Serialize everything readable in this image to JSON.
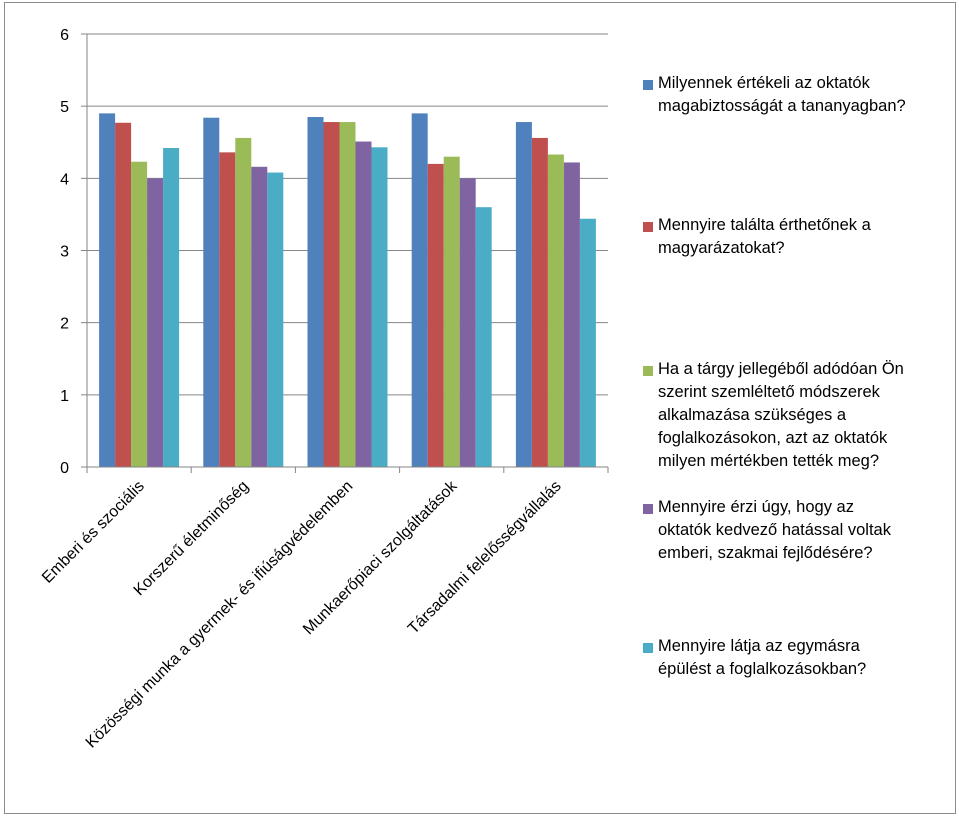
{
  "chart_data": {
    "type": "bar",
    "title": "",
    "xlabel": "",
    "ylabel": "",
    "ylim": [
      0,
      6
    ],
    "yticks": [
      "0",
      "1",
      "2",
      "3",
      "4",
      "5",
      "6"
    ],
    "grid": true,
    "legend_position": "right",
    "categories": [
      "Emberi és szociális",
      "Korszerű életminőség",
      "Közösségi munka a gyermek- és ifiúságvédelemben",
      "Munkaerőpiaci szolgáltatások",
      "Társadalmi felelősségvállalás"
    ],
    "series": [
      {
        "name": "Milyennek értékeli az oktatók magabiztosságát a tananyagban?",
        "color": "#4F81BD",
        "values": [
          4.9,
          4.84,
          4.85,
          4.9,
          4.78
        ]
      },
      {
        "name": "Mennyire találta érthetőnek a magyarázatokat?",
        "color": "#C0504D",
        "values": [
          4.77,
          4.36,
          4.78,
          4.2,
          4.56
        ]
      },
      {
        "name": "Ha a tárgy jellegéből adódóan Ön szerint szemléltető módszerek alkalmazása szükséges a foglalkozásokon, azt az oktatók milyen mértékben tették meg?",
        "color": "#9BBB59",
        "values": [
          4.23,
          4.56,
          4.78,
          4.3,
          4.33
        ]
      },
      {
        "name": "Mennyire érzi úgy, hogy az oktatók kedvező hatással voltak emberi, szakmai fejlődésére?",
        "color": "#8064A2",
        "values": [
          4.0,
          4.16,
          4.51,
          4.0,
          4.22
        ]
      },
      {
        "name": "Mennyire látja az egymásra épülést a foglalkozásokban?",
        "color": "#4BACC6",
        "values": [
          4.42,
          4.08,
          4.43,
          3.6,
          3.44
        ]
      }
    ]
  },
  "legend": {
    "items": [
      "Milyennek értékeli az oktatók\nmagabiztosságát a tananyagban?",
      "Mennyire találta érthetőnek a\nmagyarázatokat?",
      "Ha a tárgy jellegéből adódóan Ön\nszerint szemléltető módszerek\nalkalmazása szükséges a\nfoglalkozásokon, azt az oktatók\nmilyen mértékben tették meg?",
      "Mennyire érzi úgy, hogy az\noktatók kedvező hatással voltak\nemberi, szakmai fejlődésére?",
      "Mennyire látja az egymásra\népülést a foglalkozásokban?"
    ]
  }
}
